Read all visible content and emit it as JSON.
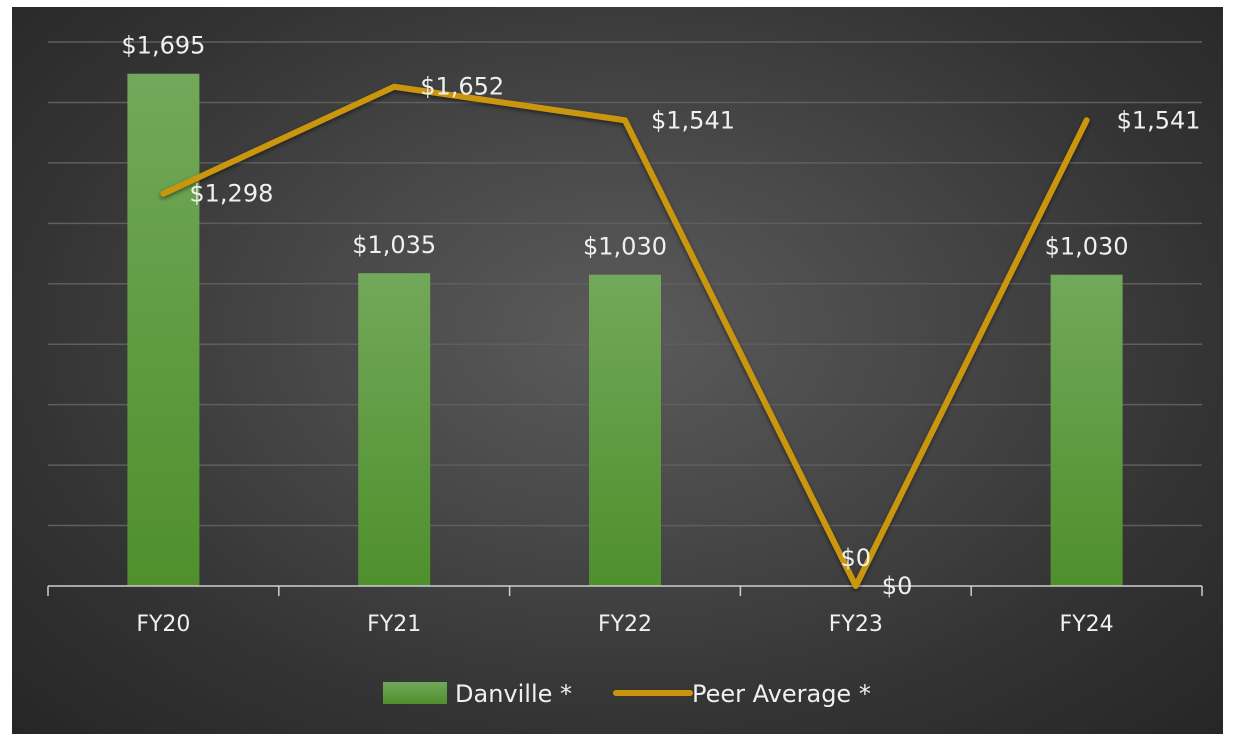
{
  "chart_data": {
    "type": "bar",
    "categories": [
      "FY20",
      "FY21",
      "FY22",
      "FY23",
      "FY24"
    ],
    "series": [
      {
        "name": "Danville *",
        "kind": "bar",
        "values": [
          1695,
          1035,
          1030,
          0,
          1030
        ],
        "labels": [
          "$1,695",
          "$1,035",
          "$1,030",
          "$0",
          "$1,030"
        ],
        "color": "#5e9a3c"
      },
      {
        "name": "Peer Average *",
        "kind": "line",
        "values": [
          1298,
          1652,
          1541,
          0,
          1541
        ],
        "labels": [
          "$1,298",
          "$1,652",
          "$1,541",
          "$0",
          "$1,541"
        ],
        "color": "#c9960b"
      }
    ],
    "ylim": [
      0,
      1800
    ],
    "grid": true,
    "legend_position": "bottom"
  },
  "colors": {
    "background": "#444444",
    "gridline": "#5e5e5e",
    "axis": "#cfcfcf",
    "text": "#f0f0f0"
  }
}
